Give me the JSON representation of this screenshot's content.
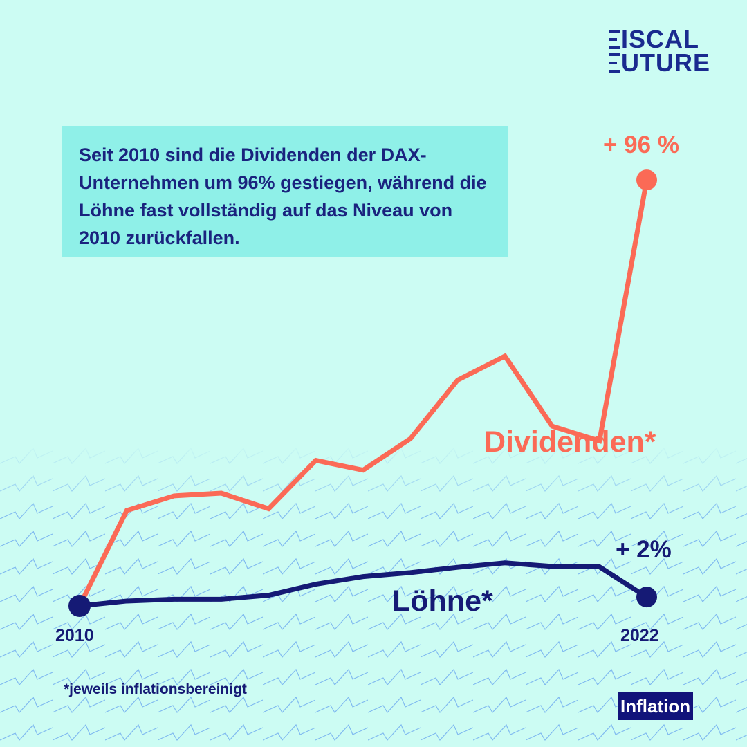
{
  "brand": {
    "line1": "ISCAL",
    "line2": "UTURE"
  },
  "callout": {
    "text": "Seit 2010 sind die Dividenden der DAX-Unternehmen um 96% gestiegen, während die Löhne fast vollständig auf das Niveau von 2010 zurückfallen."
  },
  "footnote": "*jeweils inflationsbereinigt",
  "tag": "Inflation",
  "chart_data": {
    "type": "line",
    "x": [
      2010,
      2011,
      2012,
      2013,
      2014,
      2015,
      2016,
      2017,
      2018,
      2019,
      2020,
      2021,
      2022
    ],
    "x_tick_labels": {
      "start": "2010",
      "end": "2022"
    },
    "series": [
      {
        "name": "Dividenden*",
        "color": "#fb6a56",
        "values": [
          0,
          21.5,
          24.8,
          25.4,
          21.9,
          32.8,
          30.6,
          37.7,
          50.9,
          56.3,
          40.5,
          37.2,
          96
        ],
        "end_label": "+ 96 %"
      },
      {
        "name": "Löhne*",
        "color": "#151a75",
        "values": [
          0,
          1.1,
          1.5,
          1.5,
          2.4,
          4.9,
          6.6,
          7.5,
          8.7,
          9.7,
          8.9,
          8.8,
          2
        ],
        "end_label": "+ 2%"
      }
    ],
    "ylim": [
      0,
      100
    ],
    "grid": false,
    "legend": "none"
  }
}
